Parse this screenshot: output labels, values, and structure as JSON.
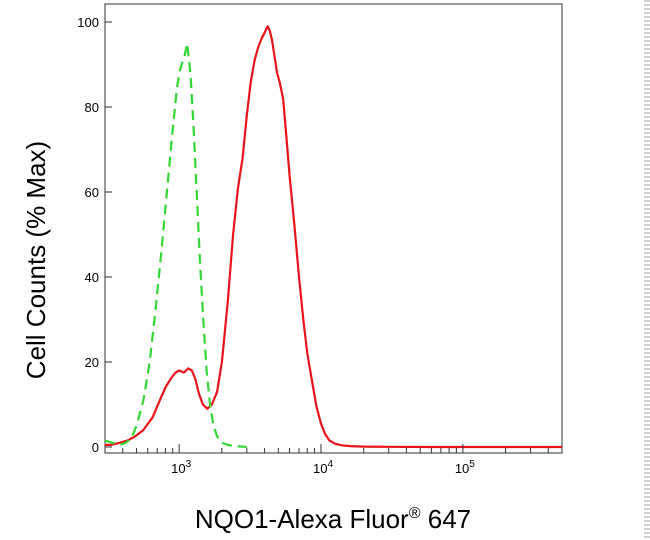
{
  "chart_data": {
    "type": "line",
    "xlabel": "NQO1-Alexa Fluor",
    "xlabel_mark": "®",
    "xlabel_suffix": " 647",
    "ylabel": "Cell Counts (% Max)",
    "x_scale": "log",
    "xlim": [
      300,
      500000
    ],
    "ylim": [
      0,
      100
    ],
    "y_ticks": [
      0,
      20,
      40,
      60,
      80,
      100
    ],
    "x_ticks": [
      {
        "value": 1000,
        "base": "10",
        "exp": "3"
      },
      {
        "value": 10000,
        "base": "10",
        "exp": "4"
      },
      {
        "value": 100000,
        "base": "10",
        "exp": "5"
      }
    ],
    "grid": false,
    "legend": "none",
    "series": [
      {
        "color": "#e8141b",
        "style": "solid",
        "x": [
          300,
          330,
          380,
          430,
          490,
          560,
          650,
          730,
          800,
          870,
          940,
          1000,
          1080,
          1160,
          1230,
          1300,
          1380,
          1470,
          1580,
          1700,
          1850,
          2000,
          2200,
          2400,
          2600,
          2800,
          3000,
          3200,
          3400,
          3600,
          3800,
          4000,
          4200,
          4350,
          4500,
          4700,
          4900,
          5100,
          5400,
          5700,
          6000,
          6500,
          7000,
          7500,
          8000,
          8700,
          9300,
          10000,
          10700,
          11500,
          12500,
          14000,
          16000,
          20000,
          30000,
          60000,
          120000,
          250000,
          500000
        ],
        "y": [
          0.5,
          0.5,
          1,
          1.5,
          2.5,
          4,
          7,
          11,
          14,
          16,
          17.5,
          18,
          17.5,
          18.5,
          18,
          16,
          12.5,
          10,
          9,
          10,
          13,
          20,
          34,
          50,
          61,
          68,
          78,
          86,
          91,
          94,
          96,
          97.5,
          99,
          98,
          96,
          92,
          88,
          86,
          82,
          73,
          64,
          52,
          40,
          30,
          22,
          15,
          9.5,
          5.5,
          3,
          1.5,
          0.8,
          0.4,
          0.2,
          0.1,
          0.05,
          0,
          0,
          0,
          0
        ]
      },
      {
        "color": "#33d633",
        "style": "dashed",
        "x": [
          300,
          340,
          380,
          420,
          460,
          500,
          560,
          620,
          680,
          750,
          820,
          890,
          960,
          1000,
          1040,
          1090,
          1140,
          1200,
          1260,
          1330,
          1400,
          1480,
          1560,
          1650,
          1750,
          1850,
          2000,
          2200,
          2500,
          3000
        ],
        "y": [
          1.5,
          1,
          0.5,
          1,
          2,
          5,
          11,
          20,
          32,
          46,
          60,
          73,
          84,
          88,
          90,
          92,
          95,
          88,
          76,
          60,
          44,
          30,
          18,
          10,
          5,
          2.5,
          1,
          0.5,
          0.2,
          0
        ]
      }
    ]
  }
}
